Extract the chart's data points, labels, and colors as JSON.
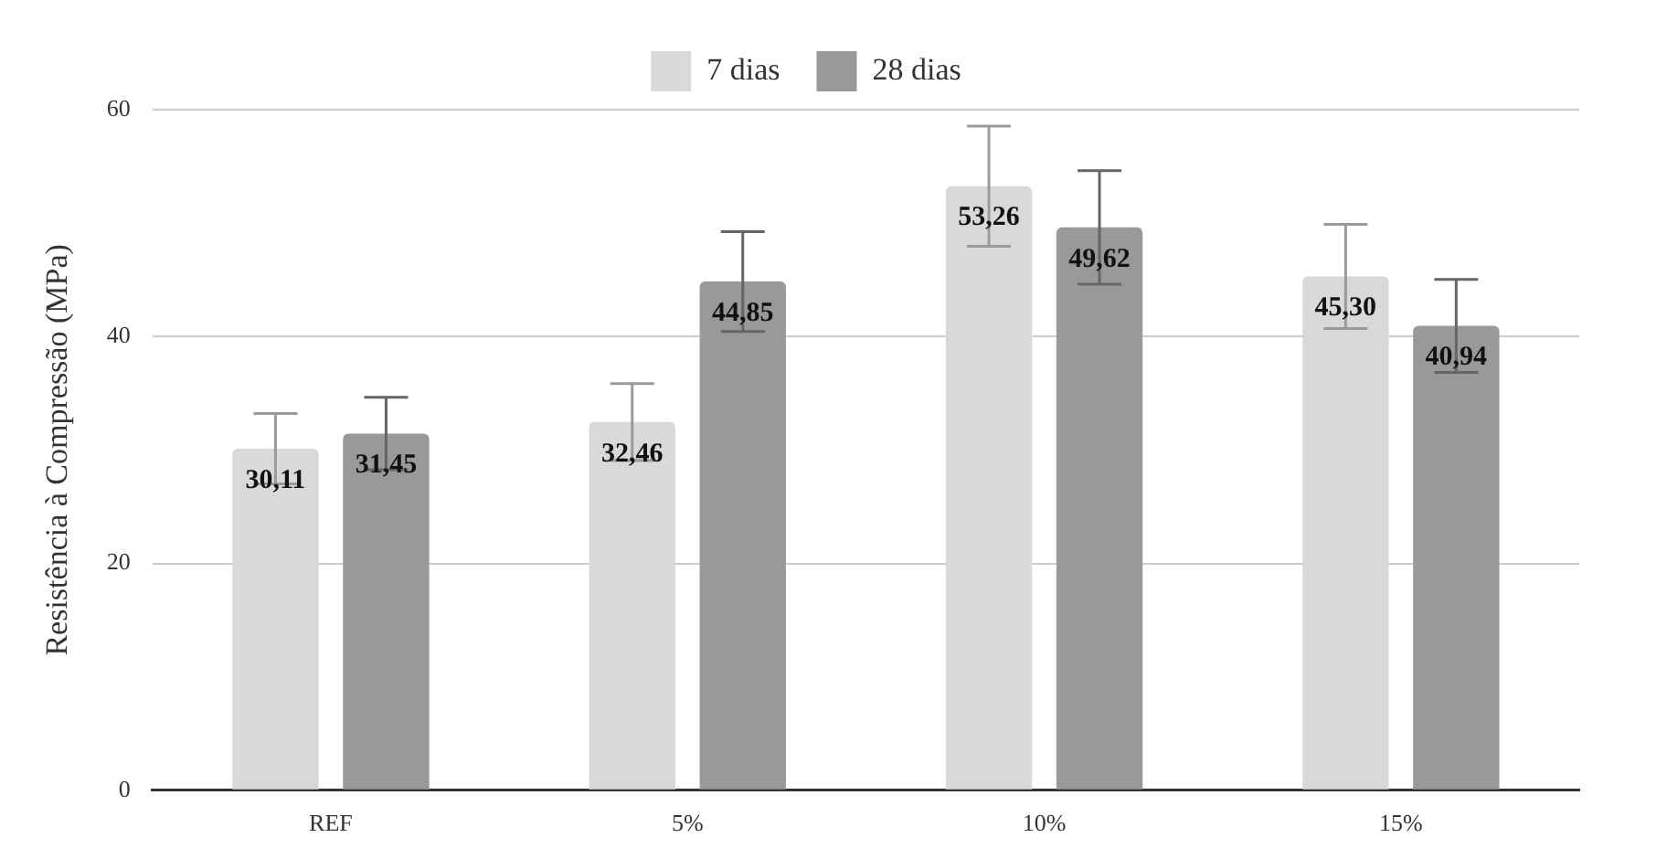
{
  "chart_data": {
    "type": "bar",
    "ylabel": "Resistência à Compressão (MPa)",
    "categories": [
      "REF",
      "5%",
      "10%",
      "15%"
    ],
    "series": [
      {
        "name": "7 dias",
        "color": "#d9d9d9",
        "values": [
          30.11,
          32.46,
          53.26,
          45.3
        ],
        "errors": [
          3.1,
          3.4,
          5.3,
          4.6
        ],
        "value_labels": [
          "30,11",
          "32,46",
          "53,26",
          "45,30"
        ]
      },
      {
        "name": "28 dias",
        "color": "#999999",
        "values": [
          31.45,
          44.85,
          49.62,
          40.94
        ],
        "errors": [
          3.2,
          4.4,
          5,
          4.1
        ],
        "value_labels": [
          "31,45",
          "44,85",
          "49,62",
          "40,94"
        ]
      }
    ],
    "ylim": [
      0,
      60
    ],
    "yticks": [
      0,
      20,
      40,
      60
    ],
    "grid": "y",
    "legend": "top"
  }
}
